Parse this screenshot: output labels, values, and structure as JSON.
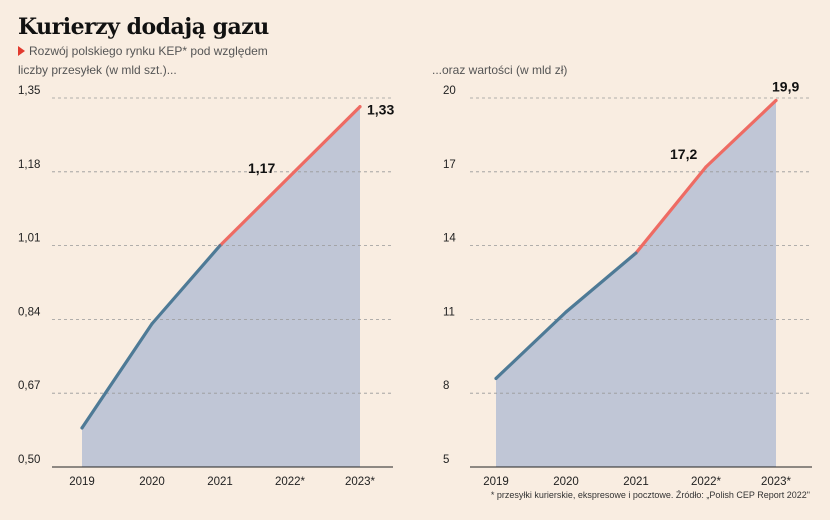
{
  "title": "Kurierzy dodają gazu",
  "subtitle_line1": "Rozwój polskiego rynku KEP* pod względem",
  "subtitle_line2": "liczby przesyłek (w mld szt.)...",
  "subtitle_right": "...oraz wartości (w mld zł)",
  "footnote": "* przesyłki kurierskie, ekspresowe i pocztowe. Źródło: „Polish CEP Report 2022\"",
  "colors": {
    "line": "#4e7a96",
    "forecast": "#ee6b63",
    "area": "#c0c6d6",
    "marker": "#e23a2e"
  },
  "chart_data": [
    {
      "type": "area",
      "title": "",
      "x": [
        "2019",
        "2020",
        "2021",
        "2022*",
        "2023*"
      ],
      "values": [
        0.59,
        0.83,
        1.01,
        1.17,
        1.33
      ],
      "forecast_from_index": 3,
      "ylim": [
        0.5,
        1.35
      ],
      "yticks": [
        "0,50",
        "0,67",
        "0,84",
        "1,01",
        "1,18",
        "1,35"
      ],
      "ytick_values": [
        0.5,
        0.67,
        0.84,
        1.01,
        1.18,
        1.35
      ],
      "data_labels": [
        {
          "index": 3,
          "text": "1,17"
        },
        {
          "index": 4,
          "text": "1,33"
        }
      ],
      "grid": true
    },
    {
      "type": "area",
      "title": "",
      "x": [
        "2019",
        "2020",
        "2021",
        "2022*",
        "2023*"
      ],
      "values": [
        8.6,
        11.3,
        13.7,
        17.2,
        19.9
      ],
      "forecast_from_index": 3,
      "ylim": [
        5,
        20
      ],
      "yticks": [
        "5",
        "8",
        "11",
        "14",
        "17",
        "20"
      ],
      "ytick_values": [
        5,
        8,
        11,
        14,
        17,
        20
      ],
      "data_labels": [
        {
          "index": 3,
          "text": "17,2"
        },
        {
          "index": 4,
          "text": "19,9"
        }
      ],
      "grid": true
    }
  ]
}
